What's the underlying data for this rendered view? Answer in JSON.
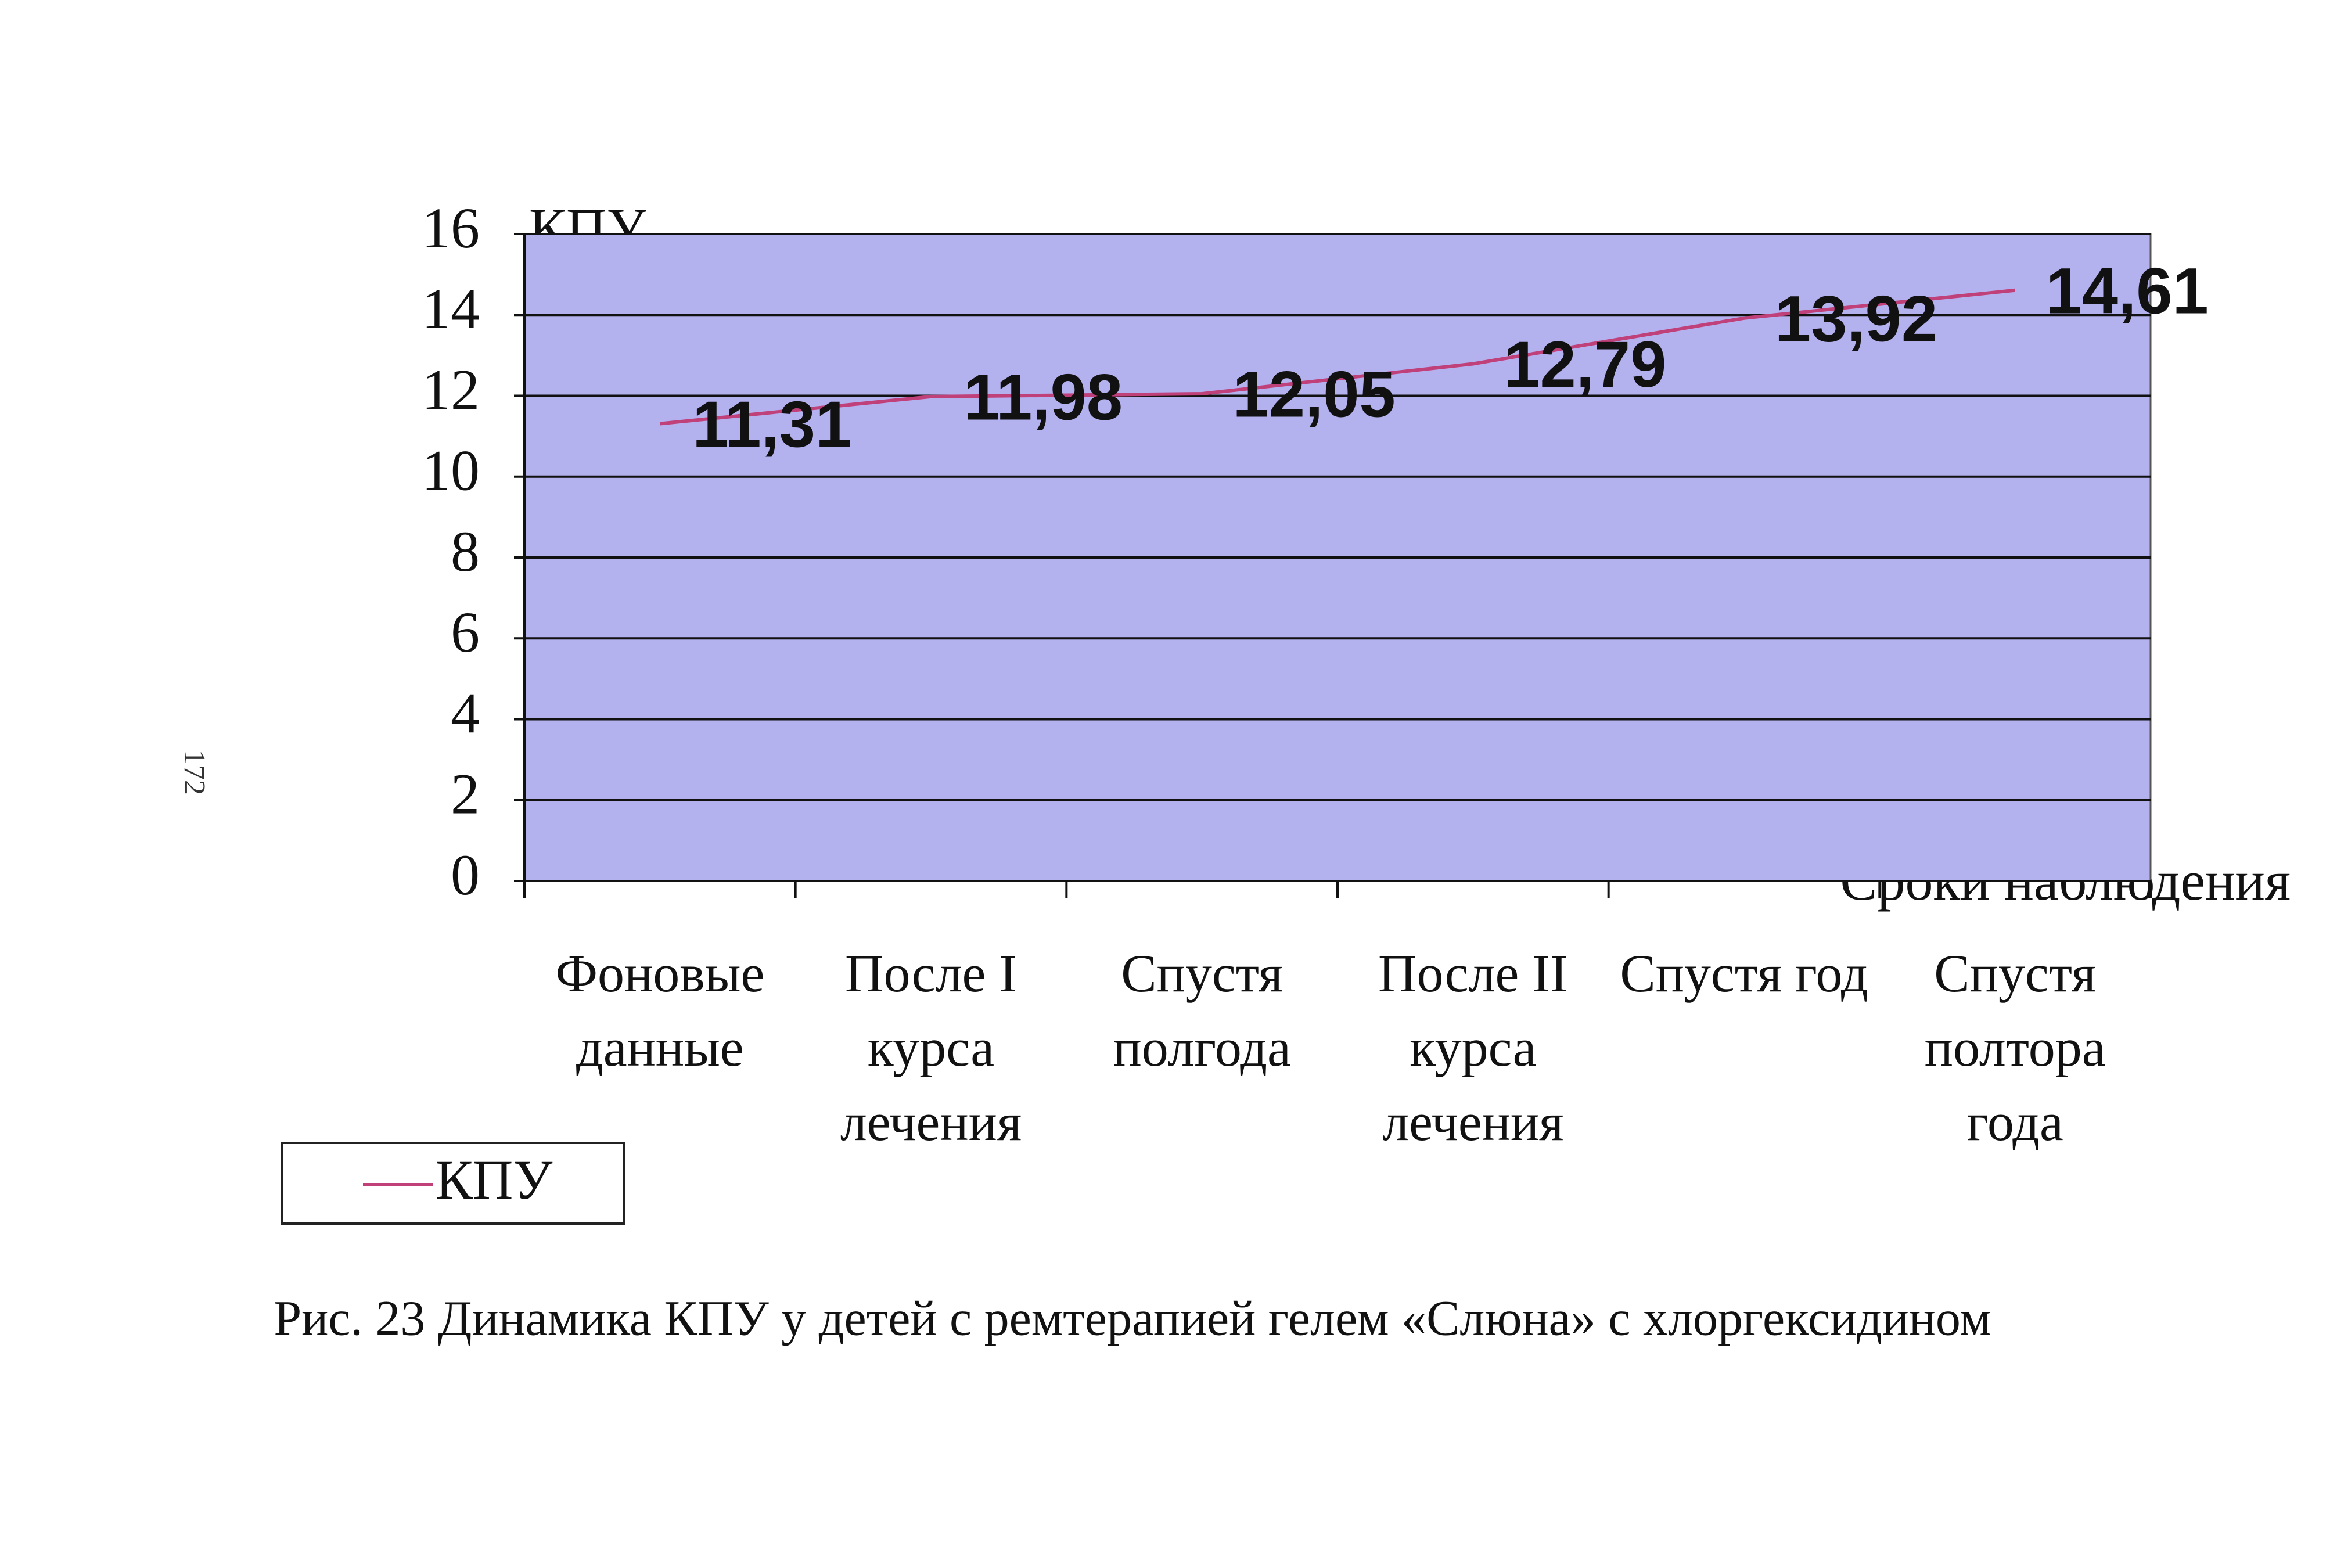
{
  "chart_data": {
    "type": "line",
    "y_label": "КПУ",
    "x_label": "Сроки наблюдения",
    "caption": "Рис. 23 Динамика КПУ у детей с ремтерапией гелем «Слюна» с хлоргексидином",
    "categories": [
      "Фоновые данные",
      "После I курса лечения",
      "Спустя полгода",
      "После II курса лечения",
      "Спустя год",
      "Спустя полтора года"
    ],
    "series": [
      {
        "name": "КПУ",
        "color": "#c0407a",
        "values": [
          11.31,
          11.98,
          12.05,
          12.79,
          13.92,
          14.61
        ],
        "value_labels": [
          "11,31",
          "11,98",
          "12,05",
          "12,79",
          "13,92",
          "14,61"
        ]
      }
    ],
    "ylim": [
      0,
      16
    ],
    "yticks": [
      0,
      2,
      4,
      6,
      8,
      10,
      12,
      14,
      16
    ],
    "grid": true,
    "plot_color": "#b4b1ef",
    "legend": "bottom-left"
  },
  "page_number": "172"
}
